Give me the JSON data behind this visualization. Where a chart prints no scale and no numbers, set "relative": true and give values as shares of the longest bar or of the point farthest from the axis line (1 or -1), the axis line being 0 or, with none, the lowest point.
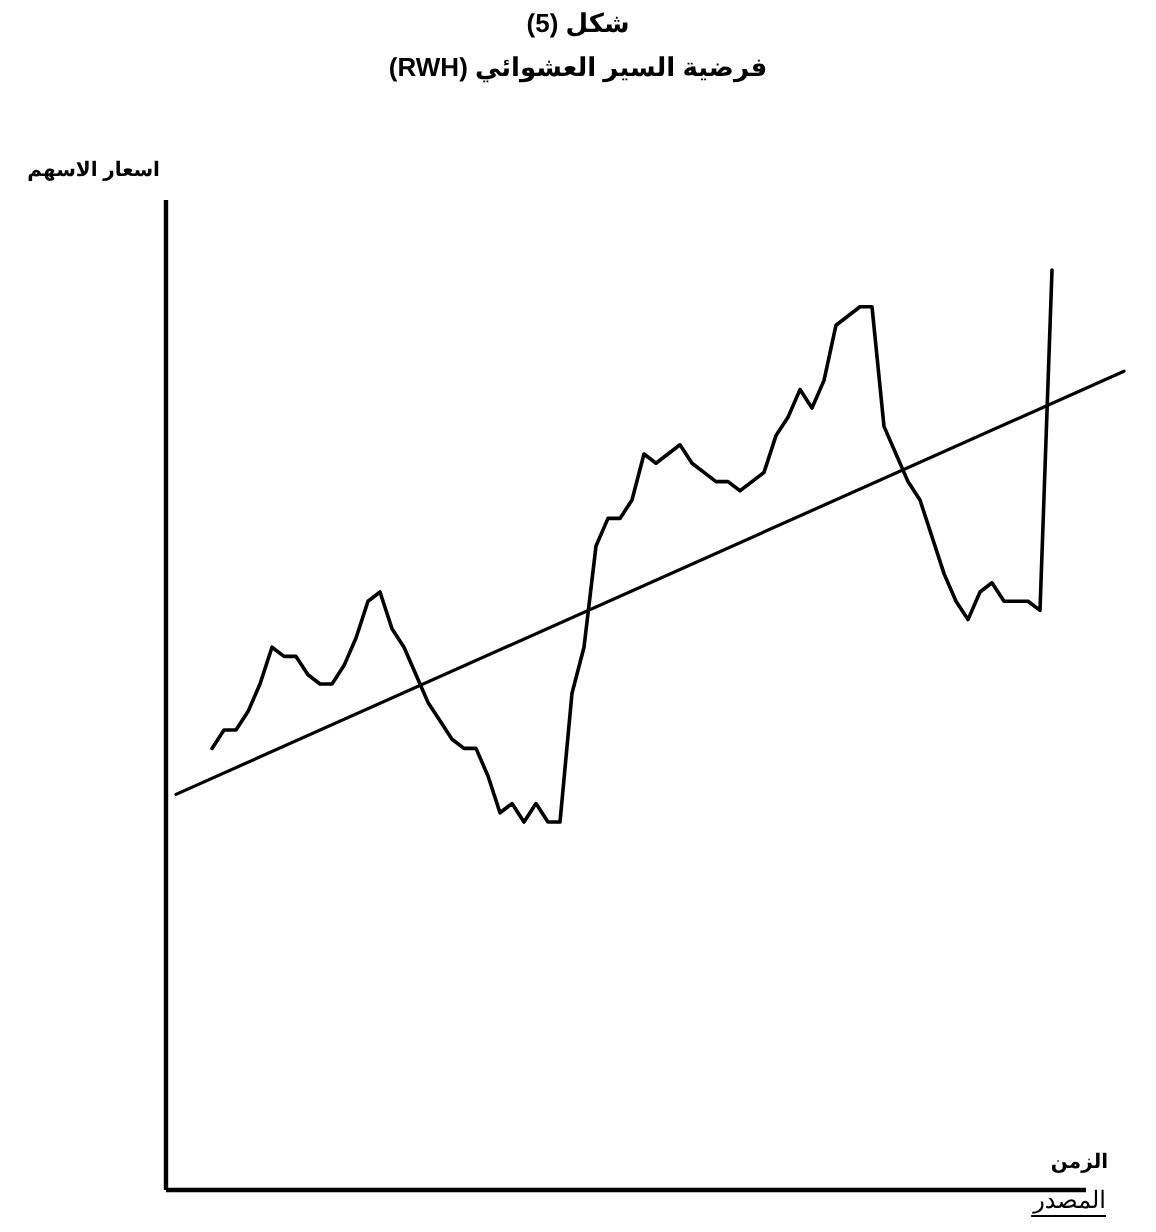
{
  "chart_data": {
    "type": "line",
    "title": "شكل (5)",
    "subtitle": "فرضية السير العشوائي (RWH)",
    "ylabel": "اسعار الاسهم",
    "xlabel": "الزمن",
    "annotations": [
      "المصدر"
    ],
    "relative": true,
    "marker": "none",
    "line_style": "solid",
    "categories": [
      null,
      null,
      null,
      null,
      null,
      null,
      null,
      null,
      null,
      null,
      null,
      null,
      null,
      null,
      null,
      null,
      null,
      null,
      null,
      null,
      null,
      null,
      null,
      null,
      null,
      null,
      null,
      null,
      null,
      null,
      null,
      null,
      null,
      null,
      null,
      null,
      null,
      null,
      null,
      null,
      null,
      null,
      null,
      null,
      null,
      null,
      null,
      null,
      null,
      null,
      null,
      null,
      null,
      null,
      null,
      null,
      null,
      null,
      null,
      null,
      null,
      null,
      null,
      null,
      null,
      null,
      null,
      null,
      null,
      null,
      null,
      null,
      null,
      null,
      null,
      null,
      null,
      null,
      null,
      null
    ],
    "series": [
      {
        "color": "#000000",
        "values": [
          null,
          null,
          null,
          0.48,
          0.5,
          0.5,
          0.52,
          0.55,
          0.59,
          0.58,
          0.58,
          0.56,
          0.55,
          0.55,
          0.57,
          0.6,
          0.64,
          0.65,
          0.61,
          0.59,
          0.56,
          0.53,
          0.51,
          0.49,
          0.48,
          0.48,
          0.45,
          0.41,
          0.42,
          0.4,
          0.42,
          0.4,
          0.4,
          0.54,
          0.59,
          0.7,
          0.73,
          0.73,
          0.75,
          0.8,
          0.79,
          0.8,
          0.81,
          0.79,
          0.78,
          0.77,
          0.77,
          0.76,
          0.77,
          0.78,
          0.82,
          0.84,
          0.87,
          0.85,
          0.88,
          0.94,
          0.95,
          0.96,
          0.96,
          0.83,
          0.8,
          0.77,
          0.75,
          0.71,
          0.67,
          0.64,
          0.62,
          0.65,
          0.66,
          0.64,
          0.64,
          0.64,
          0.63,
          1,
          null,
          null,
          null,
          null,
          null,
          null
        ]
      },
      {
        "type": "line",
        "color": "#000000",
        "values": [
          0.43,
          null,
          null,
          null,
          null,
          null,
          null,
          null,
          null,
          null,
          null,
          null,
          null,
          null,
          null,
          null,
          null,
          null,
          null,
          null,
          null,
          null,
          null,
          null,
          null,
          null,
          null,
          null,
          null,
          null,
          null,
          null,
          null,
          null,
          null,
          null,
          null,
          null,
          null,
          null,
          null,
          null,
          null,
          null,
          null,
          null,
          null,
          null,
          null,
          null,
          null,
          null,
          null,
          null,
          null,
          null,
          null,
          null,
          null,
          null,
          null,
          null,
          null,
          null,
          null,
          null,
          null,
          null,
          null,
          null,
          null,
          null,
          null,
          null,
          null,
          null,
          null,
          null,
          null,
          0.89
        ]
      }
    ]
  }
}
